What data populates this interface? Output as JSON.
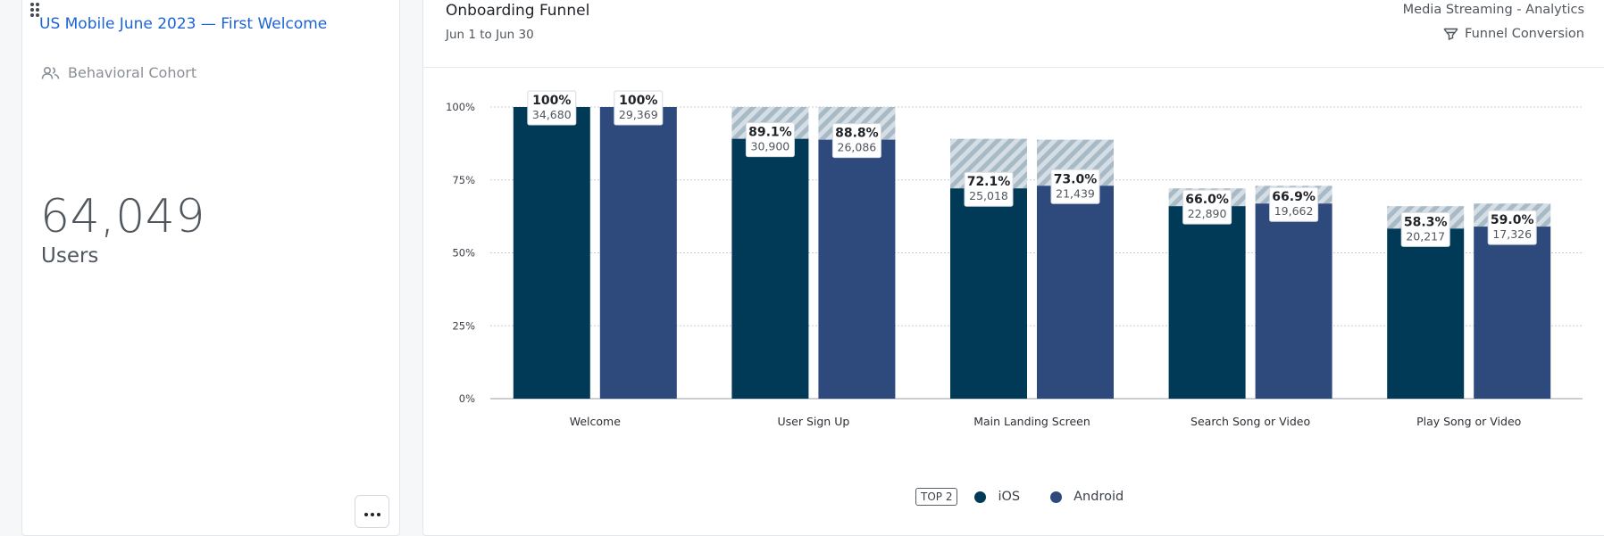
{
  "cohort": {
    "title": "US Mobile June 2023 — First Welcome",
    "type_label": "Behavioral Cohort",
    "type_icon": "users-icon",
    "user_count": "64,049",
    "user_unit": "Users",
    "more_icon": "more-horizontal-icon"
  },
  "chart_header": {
    "title": "Onboarding Funnel",
    "date_range": "Jun 1 to Jun 30",
    "project": "Media Streaming - Analytics",
    "chart_type_label": "Funnel Conversion",
    "chart_type_icon": "funnel-icon"
  },
  "chart_data": {
    "type": "bar",
    "title": "Onboarding Funnel",
    "categories": [
      "Welcome",
      "User Sign Up",
      "Main Landing Screen",
      "Search Song or Video",
      "Play Song or Video"
    ],
    "ylim": [
      0,
      100
    ],
    "yticks": [
      "0%",
      "25%",
      "50%",
      "75%",
      "100%"
    ],
    "grid": true,
    "legend_placement": "bottom-center",
    "legend_badge": "TOP 2",
    "series": [
      {
        "name": "iOS",
        "color": "#003a57",
        "values": [
          100,
          89.1,
          72.1,
          66.0,
          58.3
        ],
        "value_labels": [
          "100%",
          "89.1%",
          "72.1%",
          "66.0%",
          "58.3%"
        ],
        "counts": [
          "34,680",
          "30,900",
          "25,018",
          "22,890",
          "20,217"
        ],
        "previous_step": [
          100,
          100,
          89.1,
          72.1,
          66.0
        ]
      },
      {
        "name": "Android",
        "color": "#2e4a7c",
        "values": [
          100,
          88.8,
          73.0,
          66.9,
          59.0
        ],
        "value_labels": [
          "100%",
          "88.8%",
          "73.0%",
          "66.9%",
          "59.0%"
        ],
        "counts": [
          "29,369",
          "26,086",
          "21,439",
          "19,662",
          "17,326"
        ],
        "previous_step": [
          100,
          100,
          88.8,
          73.0,
          66.9
        ]
      }
    ],
    "dropoff_color": "#a7bac6"
  }
}
